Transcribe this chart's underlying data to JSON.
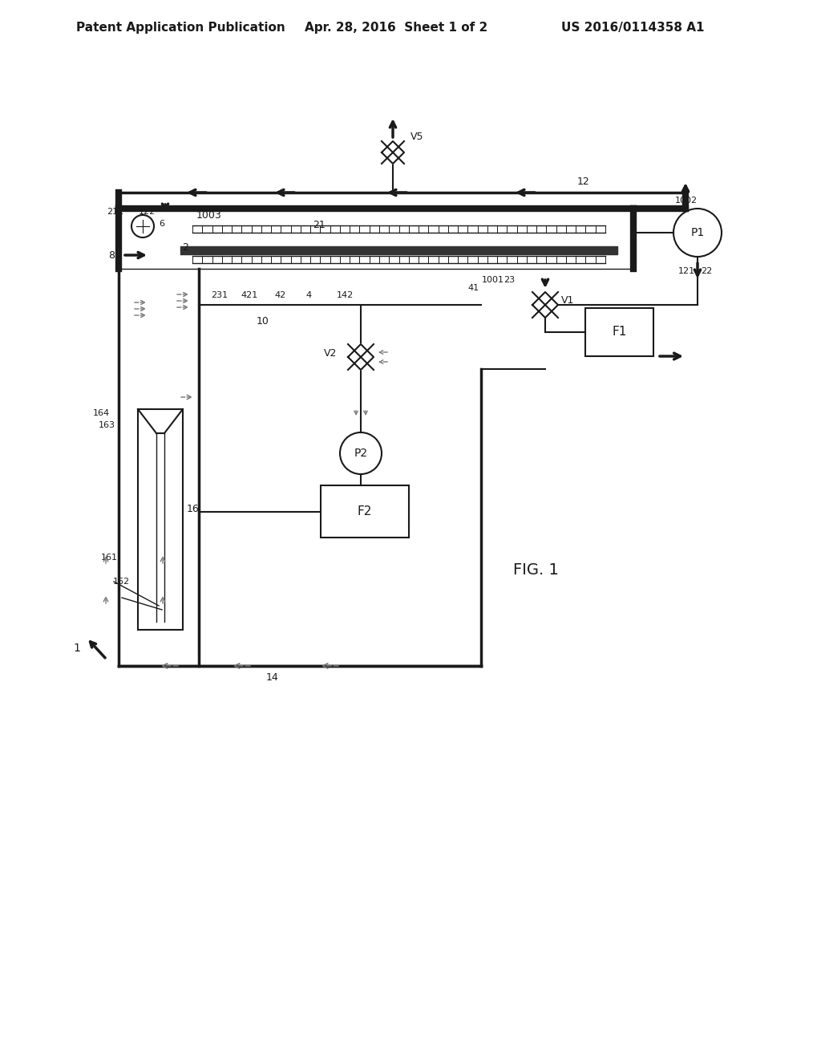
{
  "bg_color": "#ffffff",
  "lc": "#1a1a1a",
  "header_left": "Patent Application Publication",
  "header_center": "Apr. 28, 2016  Sheet 1 of 2",
  "header_right": "US 2016/0114358 A1",
  "fig_label": "FIG. 1",
  "lw_wall": 6.0,
  "lw_thick": 2.5,
  "lw_med": 1.5,
  "lw_thin": 1.0
}
